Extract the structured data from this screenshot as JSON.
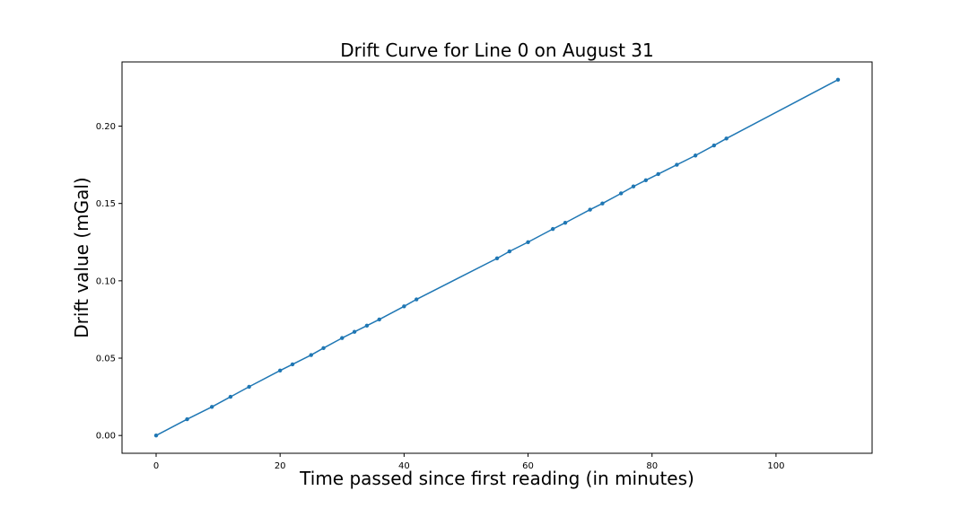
{
  "chart_data": {
    "type": "line",
    "title": "Drift Curve for Line 0 on August 31",
    "xlabel": "Time passed since first reading (in minutes)",
    "ylabel": "Drift value (mGal)",
    "xlim": [
      -5.5,
      115.5
    ],
    "ylim": [
      -0.0115,
      0.2415
    ],
    "xticks": [
      0,
      20,
      40,
      60,
      80,
      100
    ],
    "xtick_labels": [
      "0",
      "20",
      "40",
      "60",
      "80",
      "100"
    ],
    "yticks": [
      0.0,
      0.05,
      0.1,
      0.15,
      0.2
    ],
    "ytick_labels": [
      "0.00",
      "0.05",
      "0.10",
      "0.15",
      "0.20"
    ],
    "grid": false,
    "series": [
      {
        "color": "#1f77b4",
        "marker": "circle",
        "points": [
          {
            "x": 0,
            "y": 0.0
          },
          {
            "x": 5,
            "y": 0.0105
          },
          {
            "x": 9,
            "y": 0.0185
          },
          {
            "x": 12,
            "y": 0.025
          },
          {
            "x": 15,
            "y": 0.0315
          },
          {
            "x": 20,
            "y": 0.042
          },
          {
            "x": 22,
            "y": 0.046
          },
          {
            "x": 25,
            "y": 0.052
          },
          {
            "x": 27,
            "y": 0.0565
          },
          {
            "x": 30,
            "y": 0.063
          },
          {
            "x": 32,
            "y": 0.067
          },
          {
            "x": 34,
            "y": 0.071
          },
          {
            "x": 36,
            "y": 0.075
          },
          {
            "x": 40,
            "y": 0.0835
          },
          {
            "x": 42,
            "y": 0.088
          },
          {
            "x": 55,
            "y": 0.1145
          },
          {
            "x": 57,
            "y": 0.119
          },
          {
            "x": 60,
            "y": 0.125
          },
          {
            "x": 64,
            "y": 0.1335
          },
          {
            "x": 66,
            "y": 0.1375
          },
          {
            "x": 70,
            "y": 0.146
          },
          {
            "x": 72,
            "y": 0.15
          },
          {
            "x": 75,
            "y": 0.1565
          },
          {
            "x": 77,
            "y": 0.161
          },
          {
            "x": 79,
            "y": 0.165
          },
          {
            "x": 81,
            "y": 0.169
          },
          {
            "x": 84,
            "y": 0.175
          },
          {
            "x": 87,
            "y": 0.181
          },
          {
            "x": 90,
            "y": 0.1875
          },
          {
            "x": 92,
            "y": 0.192
          },
          {
            "x": 110,
            "y": 0.23
          }
        ]
      }
    ]
  }
}
